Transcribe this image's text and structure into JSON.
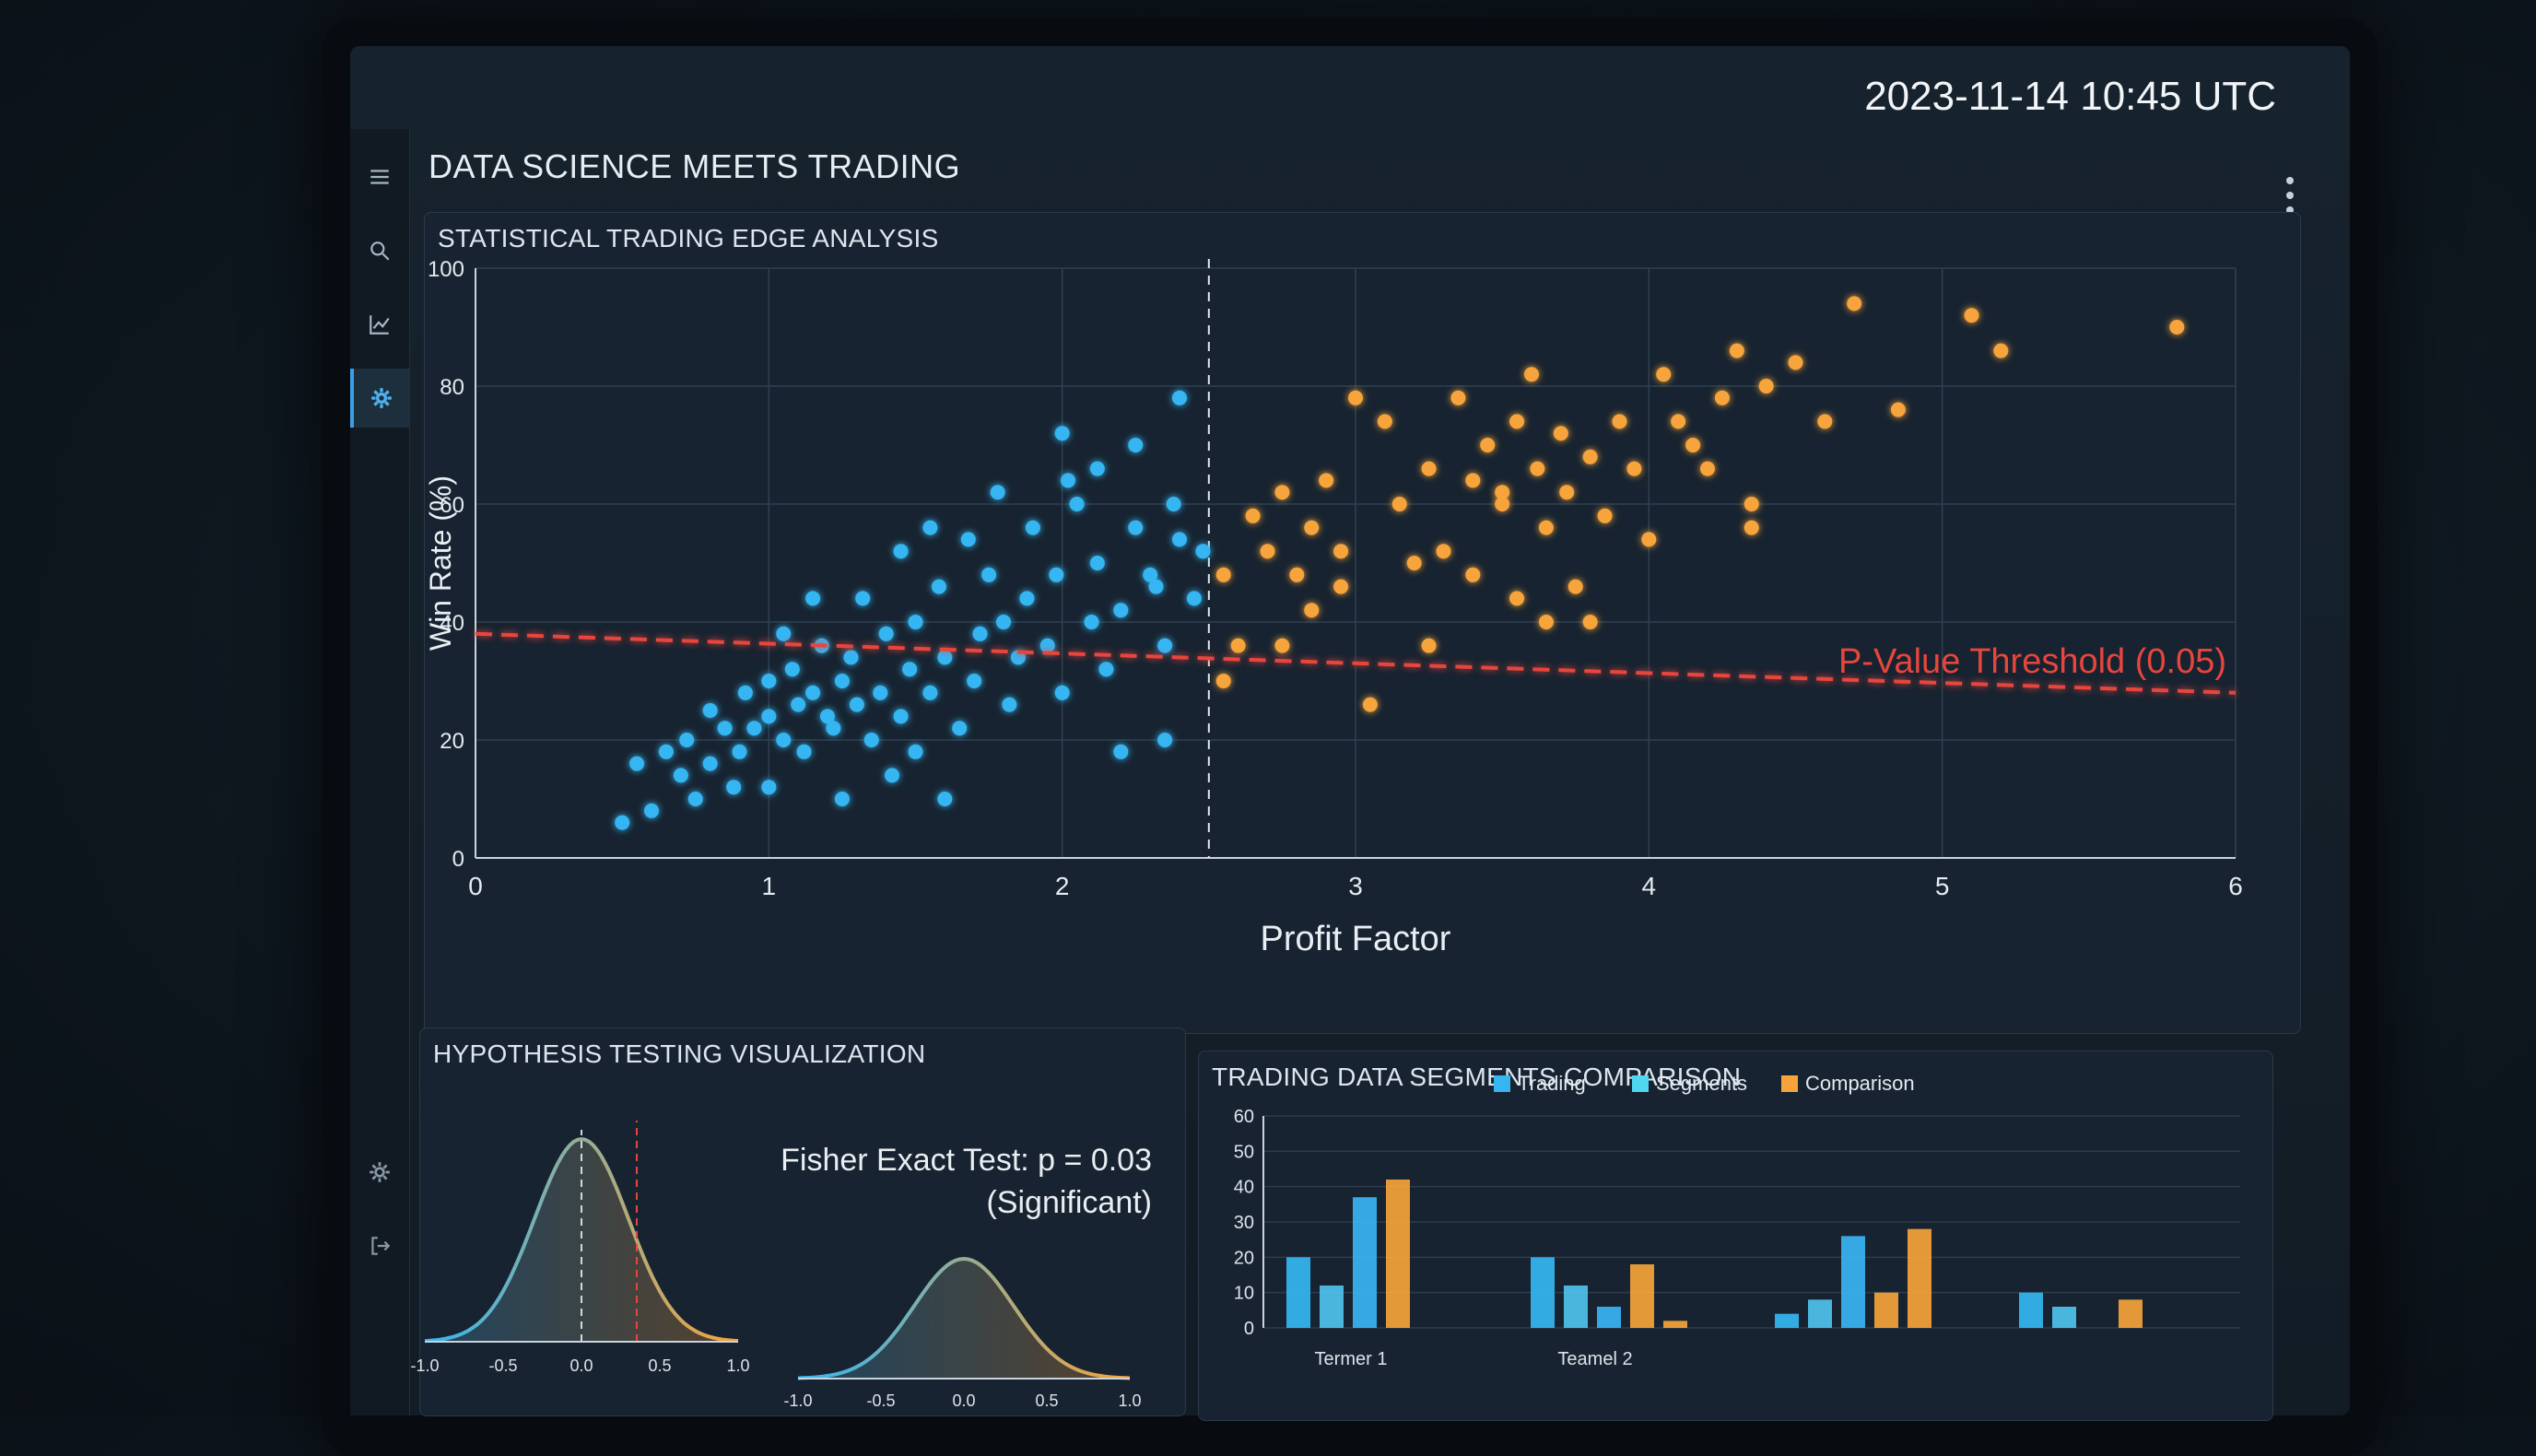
{
  "header": {
    "title": "DATA SCIENCE MEETS TRADING",
    "timestamp": "2023-11-14 10:45 UTC"
  },
  "sidebar": {
    "items": [
      {
        "icon": "hamburger-icon"
      },
      {
        "icon": "search-icon"
      },
      {
        "icon": "line-chart-icon"
      },
      {
        "icon": "gear-icon",
        "active": true
      },
      {
        "icon": "settings-icon"
      },
      {
        "icon": "logout-icon"
      }
    ]
  },
  "main_panel": {
    "title": "STATISTICAL TRADING EDGE ANALYSIS"
  },
  "hypothesis_panel": {
    "title": "HYPOTHESIS TESTING VISUALIZATION",
    "fisher_line1": "Fisher Exact Test: p = 0.03",
    "fisher_line2": "(Significant)",
    "left_ticks": [
      "-1.0",
      "-0.5",
      "0.0",
      "0.5",
      "1.0"
    ],
    "right_ticks": [
      "-1.0",
      "-0.5",
      "0.0",
      "0.5",
      "1.0"
    ]
  },
  "segments_panel": {
    "title": "TRADING DATA SEGMENTS COMPARISON"
  },
  "colors": {
    "blue": "#35b6f2",
    "orange": "#f6a43a",
    "red": "#e8453c",
    "cyan": "#4fd6f0"
  },
  "chart_data": [
    {
      "type": "scatter",
      "title": "STATISTICAL TRADING EDGE ANALYSIS",
      "xlabel": "Profit Factor",
      "ylabel": "Win Rate (%)",
      "xlim": [
        0,
        6
      ],
      "ylim": [
        0,
        100
      ],
      "xticks": [
        "0",
        "1",
        "2",
        "3",
        "4",
        "5",
        "6"
      ],
      "yticks": [
        "0",
        "20",
        "40",
        "60",
        "80",
        "100"
      ],
      "threshold": {
        "label": "P-Value Threshold (0.05)",
        "y_start": 38,
        "y_end": 28
      },
      "divider_x": 2.5,
      "grid": true,
      "series": [
        {
          "color": "blue",
          "points": [
            [
              0.5,
              6
            ],
            [
              0.6,
              8
            ],
            [
              0.55,
              16
            ],
            [
              0.7,
              14
            ],
            [
              0.65,
              18
            ],
            [
              0.75,
              10
            ],
            [
              0.8,
              16
            ],
            [
              0.72,
              20
            ],
            [
              0.85,
              22
            ],
            [
              0.8,
              25
            ],
            [
              0.9,
              18
            ],
            [
              0.95,
              22
            ],
            [
              0.92,
              28
            ],
            [
              1.0,
              24
            ],
            [
              1.0,
              30
            ],
            [
              1.05,
              20
            ],
            [
              1.1,
              26
            ],
            [
              1.08,
              32
            ],
            [
              1.12,
              18
            ],
            [
              1.15,
              28
            ],
            [
              1.2,
              24
            ],
            [
              1.18,
              36
            ],
            [
              1.25,
              30
            ],
            [
              1.22,
              22
            ],
            [
              1.3,
              26
            ],
            [
              1.28,
              34
            ],
            [
              1.35,
              20
            ],
            [
              1.38,
              28
            ],
            [
              1.4,
              38
            ],
            [
              1.32,
              44
            ],
            [
              1.45,
              24
            ],
            [
              1.48,
              32
            ],
            [
              1.5,
              40
            ],
            [
              1.42,
              14
            ],
            [
              1.5,
              18
            ],
            [
              1.55,
              28
            ],
            [
              1.6,
              34
            ],
            [
              1.58,
              46
            ],
            [
              1.65,
              22
            ],
            [
              1.7,
              30
            ],
            [
              1.72,
              38
            ],
            [
              1.75,
              48
            ],
            [
              1.68,
              54
            ],
            [
              1.8,
              40
            ],
            [
              1.82,
              26
            ],
            [
              1.85,
              34
            ],
            [
              1.88,
              44
            ],
            [
              1.9,
              56
            ],
            [
              1.95,
              36
            ],
            [
              2.0,
              28
            ],
            [
              1.98,
              48
            ],
            [
              2.05,
              60
            ],
            [
              2.1,
              40
            ],
            [
              2.12,
              50
            ],
            [
              2.02,
              64
            ],
            [
              2.15,
              32
            ],
            [
              2.2,
              42
            ],
            [
              2.25,
              56
            ],
            [
              2.0,
              72
            ],
            [
              2.2,
              18
            ],
            [
              2.3,
              48
            ],
            [
              2.35,
              36
            ],
            [
              2.4,
              54
            ],
            [
              2.45,
              44
            ],
            [
              2.38,
              60
            ],
            [
              2.4,
              78
            ],
            [
              2.25,
              70
            ],
            [
              2.48,
              52
            ],
            [
              2.35,
              20
            ],
            [
              1.25,
              10
            ],
            [
              1.0,
              12
            ],
            [
              1.15,
              44
            ],
            [
              1.05,
              38
            ],
            [
              0.88,
              12
            ],
            [
              1.6,
              10
            ],
            [
              1.78,
              62
            ],
            [
              2.12,
              66
            ],
            [
              1.55,
              56
            ],
            [
              1.45,
              52
            ],
            [
              2.32,
              46
            ]
          ]
        },
        {
          "color": "orange",
          "points": [
            [
              2.55,
              48
            ],
            [
              2.6,
              36
            ],
            [
              2.65,
              58
            ],
            [
              2.7,
              52
            ],
            [
              2.75,
              62
            ],
            [
              2.8,
              48
            ],
            [
              2.85,
              56
            ],
            [
              2.9,
              64
            ],
            [
              2.95,
              46
            ],
            [
              3.0,
              78
            ],
            [
              2.95,
              52
            ],
            [
              3.1,
              74
            ],
            [
              3.15,
              60
            ],
            [
              3.2,
              50
            ],
            [
              3.25,
              66
            ],
            [
              3.3,
              52
            ],
            [
              3.35,
              78
            ],
            [
              3.4,
              64
            ],
            [
              3.45,
              70
            ],
            [
              3.5,
              60
            ],
            [
              3.55,
              74
            ],
            [
              3.6,
              82
            ],
            [
              3.62,
              66
            ],
            [
              3.65,
              56
            ],
            [
              3.7,
              72
            ],
            [
              3.72,
              62
            ],
            [
              3.75,
              46
            ],
            [
              3.8,
              68
            ],
            [
              3.85,
              58
            ],
            [
              3.9,
              74
            ],
            [
              3.95,
              66
            ],
            [
              4.0,
              54
            ],
            [
              4.05,
              82
            ],
            [
              4.1,
              74
            ],
            [
              4.15,
              70
            ],
            [
              4.2,
              66
            ],
            [
              4.25,
              78
            ],
            [
              4.3,
              86
            ],
            [
              4.35,
              60
            ],
            [
              4.4,
              80
            ],
            [
              4.5,
              84
            ],
            [
              4.6,
              74
            ],
            [
              4.7,
              94
            ],
            [
              4.85,
              76
            ],
            [
              5.1,
              92
            ],
            [
              5.2,
              86
            ],
            [
              5.8,
              90
            ],
            [
              3.55,
              44
            ],
            [
              3.65,
              40
            ],
            [
              2.75,
              36
            ],
            [
              3.25,
              36
            ],
            [
              2.55,
              30
            ],
            [
              3.05,
              26
            ],
            [
              4.35,
              56
            ],
            [
              3.5,
              62
            ],
            [
              3.8,
              40
            ],
            [
              2.85,
              42
            ],
            [
              3.4,
              48
            ]
          ]
        }
      ]
    },
    {
      "type": "line",
      "title": "HYPOTHESIS TESTING VISUALIZATION",
      "note": "Two bell-shaped distributions (blue to orange gradient), dashed markers at 0.0 and approx 0.3 on the left curve",
      "xticks": [
        "-1.0",
        "-0.5",
        "0.0",
        "0.5",
        "1.0"
      ],
      "annotation": "Fisher Exact Test: p = 0.03 (Significant)"
    },
    {
      "type": "bar",
      "title": "TRADING DATA SEGMENTS COMPARISON",
      "legend": [
        "Trading",
        "Segments",
        "Comparison"
      ],
      "ylim": [
        0,
        60
      ],
      "yticks": [
        "0",
        "10",
        "20",
        "30",
        "40",
        "50",
        "60"
      ],
      "categories": [
        "Termer 1",
        "Teamel 2",
        "",
        ""
      ],
      "series": [
        {
          "name": "Trading",
          "values": [
            20,
            20,
            4,
            10
          ]
        },
        {
          "name": "Segments",
          "values": [
            12,
            12,
            8,
            6
          ]
        },
        {
          "name": "Segments",
          "values": [
            37,
            6,
            26,
            0
          ]
        },
        {
          "name": "Comparison",
          "values": [
            42,
            18,
            10,
            8
          ]
        },
        {
          "name": "Comparison",
          "values": [
            0,
            2,
            28,
            0
          ]
        }
      ]
    }
  ]
}
